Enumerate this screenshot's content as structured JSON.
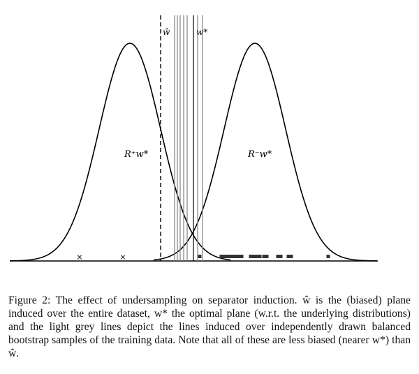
{
  "figure": {
    "labels": {
      "w_hat": "ŵ",
      "w_star": "w*",
      "region_pos": "R⁺w*",
      "region_neg": "R⁻w*"
    },
    "colors": {
      "curve": "#000000",
      "axis": "#000000",
      "bootstrap_lines": "#8a8a8a",
      "markers": "#333333"
    },
    "markers": {
      "positive_symbol": "×",
      "negative_symbol": "■"
    }
  },
  "caption": {
    "label": "Figure 2:",
    "text": "The effect of undersampling on separator induction. ŵ is the (biased) plane induced over the entire dataset, w* the optimal plane (w.r.t. the underlying distributions) and the light grey lines depict the lines induced over independently drawn balanced bootstrap samples of the training data. Note that all of these are less biased (nearer w*) than ŵ."
  }
}
